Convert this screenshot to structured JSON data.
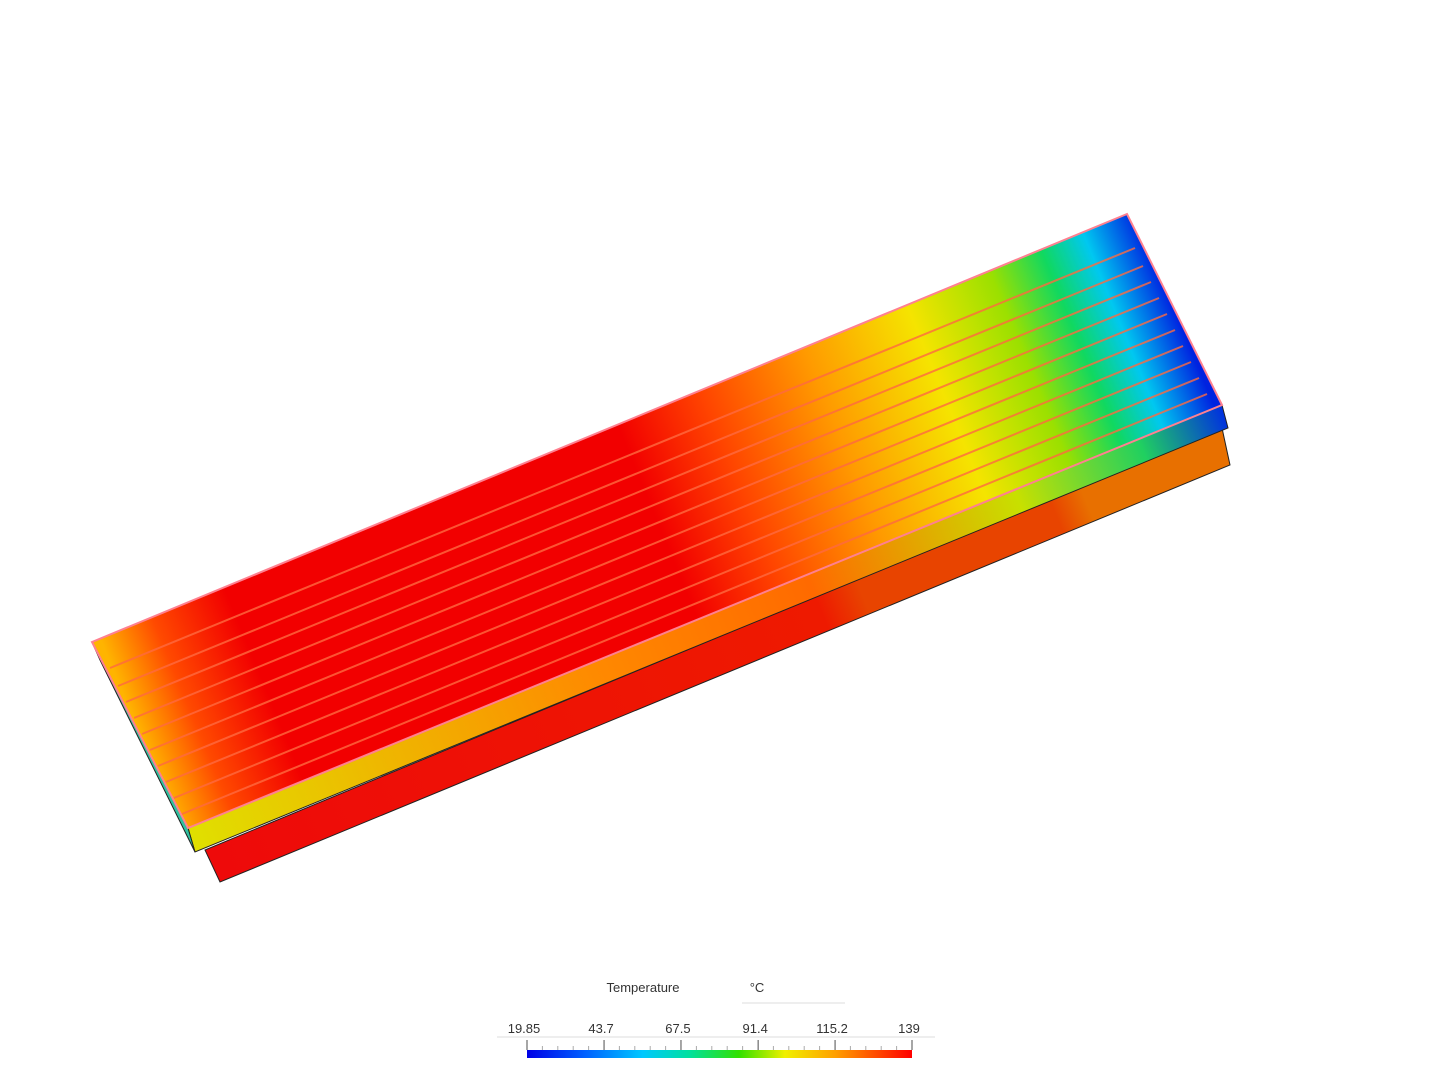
{
  "legend": {
    "title": "Temperature",
    "unit": "°C",
    "ticks": [
      19.85,
      43.7,
      67.5,
      91.4,
      115.2,
      139
    ]
  }
}
